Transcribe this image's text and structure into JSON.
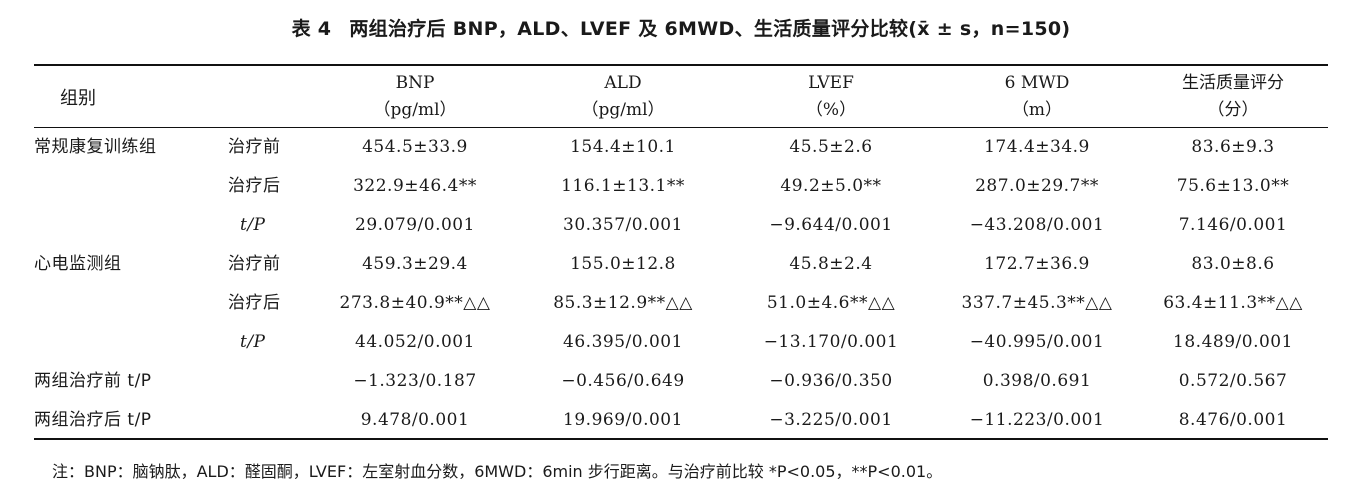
{
  "caption": {
    "label": "表 4",
    "title": "两组治疗后 BNP，ALD、LVEF 及 6MWD、生活质量评分比较(x̄ ± s，n=150)"
  },
  "header": {
    "group": "组别",
    "columns": [
      {
        "name": "BNP",
        "unit": "（pg/ml）"
      },
      {
        "name": "ALD",
        "unit": "（pg/ml）"
      },
      {
        "name": "LVEF",
        "unit": "（%）"
      },
      {
        "name": "6 MWD",
        "unit": "（m）"
      },
      {
        "name": "生活质量评分",
        "unit": "（分）"
      }
    ]
  },
  "rows": [
    {
      "group": "常规康复训练组",
      "phase": "治疗前",
      "values": [
        "454.5±33.9",
        "154.4±10.1",
        "45.5±2.6",
        "174.4±34.9",
        "83.6±9.3"
      ]
    },
    {
      "group": "",
      "phase": "治疗后",
      "values": [
        "322.9±46.4**",
        "116.1±13.1**",
        "49.2±5.0**",
        "287.0±29.7**",
        "75.6±13.0**"
      ]
    },
    {
      "group": "",
      "phase": "t/P",
      "values": [
        "29.079/0.001",
        "30.357/0.001",
        "−9.644/0.001",
        "−43.208/0.001",
        "7.146/0.001"
      ]
    },
    {
      "group": "心电监测组",
      "phase": "治疗前",
      "values": [
        "459.3±29.4",
        "155.0±12.8",
        "45.8±2.4",
        "172.7±36.9",
        "83.0±8.6"
      ]
    },
    {
      "group": "",
      "phase": "治疗后",
      "values": [
        "273.8±40.9**△△",
        "85.3±12.9**△△",
        "51.0±4.6**△△",
        "337.7±45.3**△△",
        "63.4±11.3**△△"
      ]
    },
    {
      "group": "",
      "phase": "t/P",
      "values": [
        "44.052/0.001",
        "46.395/0.001",
        "−13.170/0.001",
        "−40.995/0.001",
        "18.489/0.001"
      ]
    },
    {
      "group": "两组治疗前 t/P",
      "phase": "",
      "values": [
        "−1.323/0.187",
        "−0.456/0.649",
        "−0.936/0.350",
        "0.398/0.691",
        "0.572/0.567"
      ]
    },
    {
      "group": "两组治疗后 t/P",
      "phase": "",
      "values": [
        "9.478/0.001",
        "19.969/0.001",
        "−3.225/0.001",
        "−11.223/0.001",
        "8.476/0.001"
      ]
    }
  ],
  "note": "注：BNP：脑钠肽，ALD：醛固酮，LVEF：左室射血分数，6MWD：6min 步行距离。与治疗前比较 *P<0.05，**P<0.01。"
}
